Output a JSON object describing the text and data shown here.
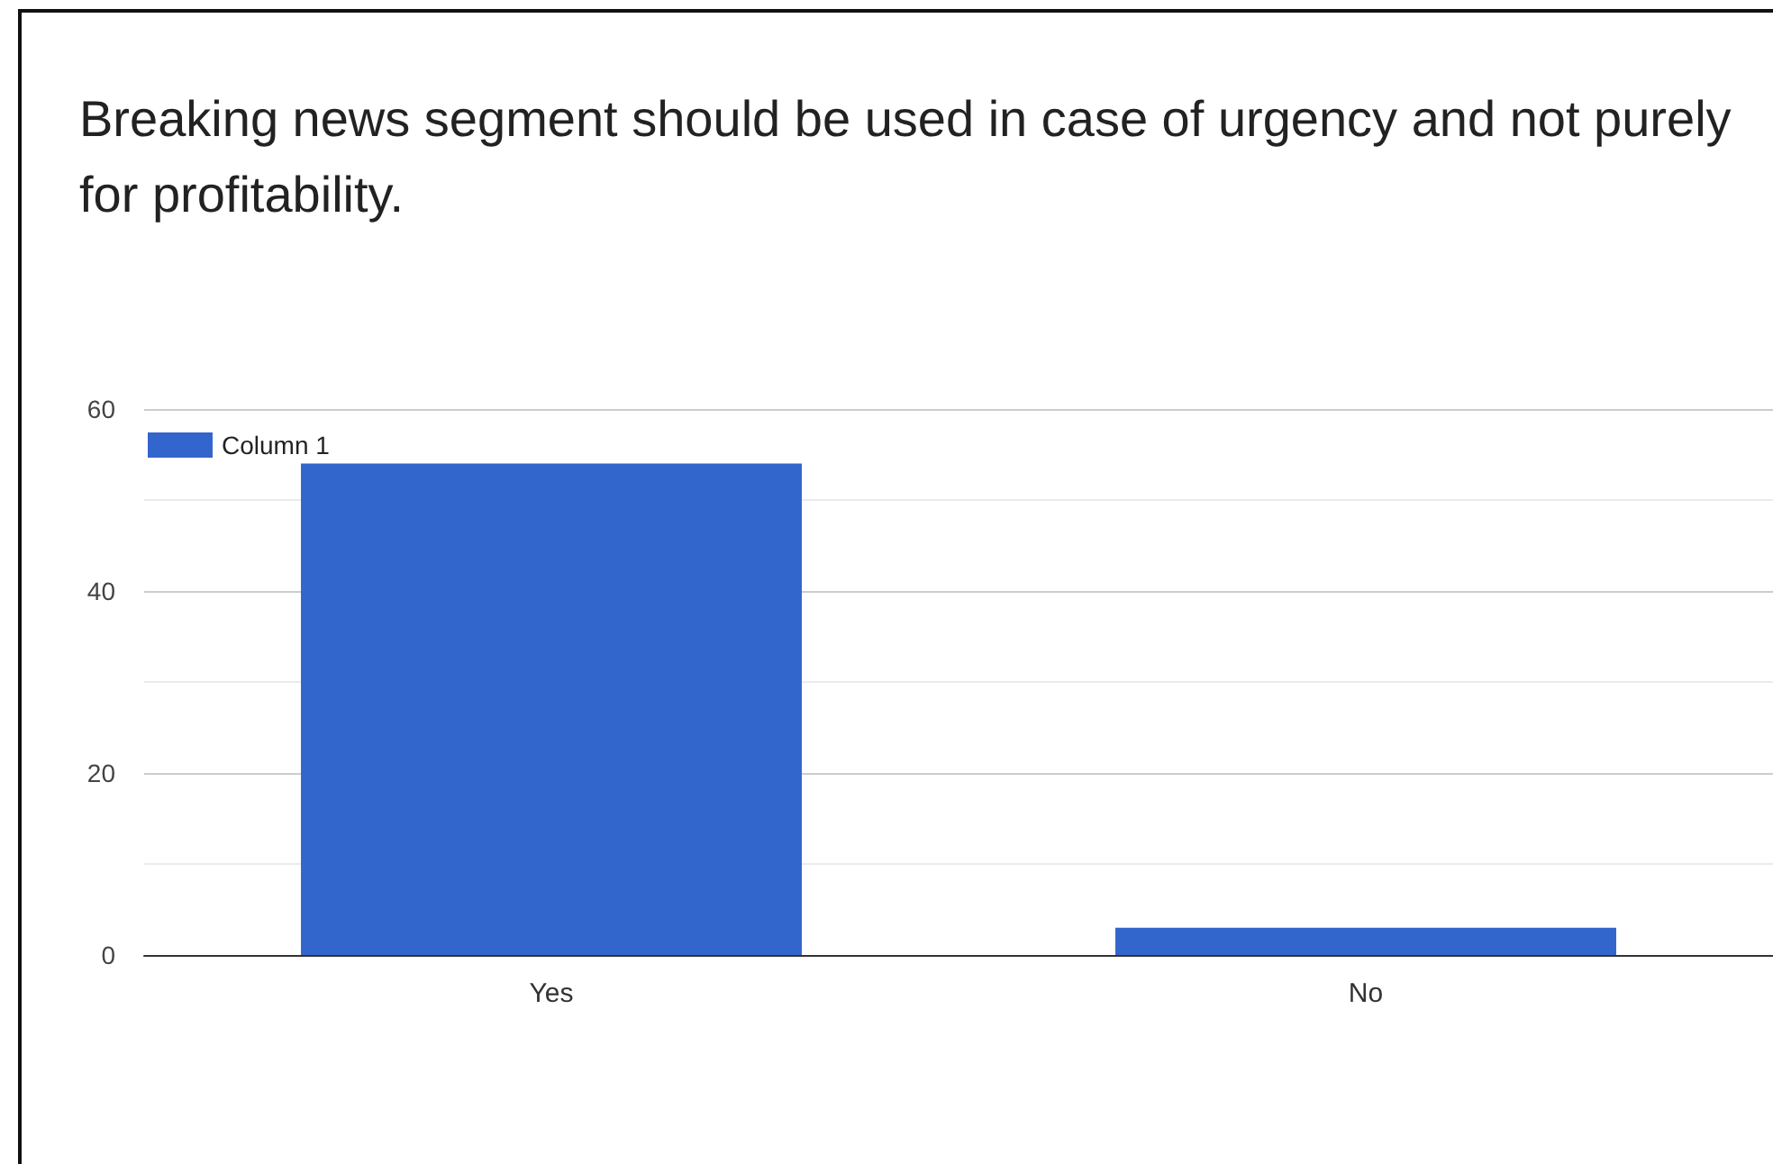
{
  "chart_data": {
    "type": "bar",
    "title": "Breaking news segment should be used in case of urgency and not purely for profitability.",
    "categories": [
      "Yes",
      "No"
    ],
    "series": [
      {
        "name": "Column 1",
        "color": "#3366cc",
        "values": [
          54,
          3
        ]
      }
    ],
    "ylim": [
      0,
      60
    ],
    "yticks": [
      0,
      {
        "value": 10,
        "label": null
      },
      20,
      {
        "value": 30,
        "label": null
      },
      40,
      {
        "value": 50,
        "label": null
      },
      60
    ],
    "grid": "y",
    "legend": "top left"
  }
}
